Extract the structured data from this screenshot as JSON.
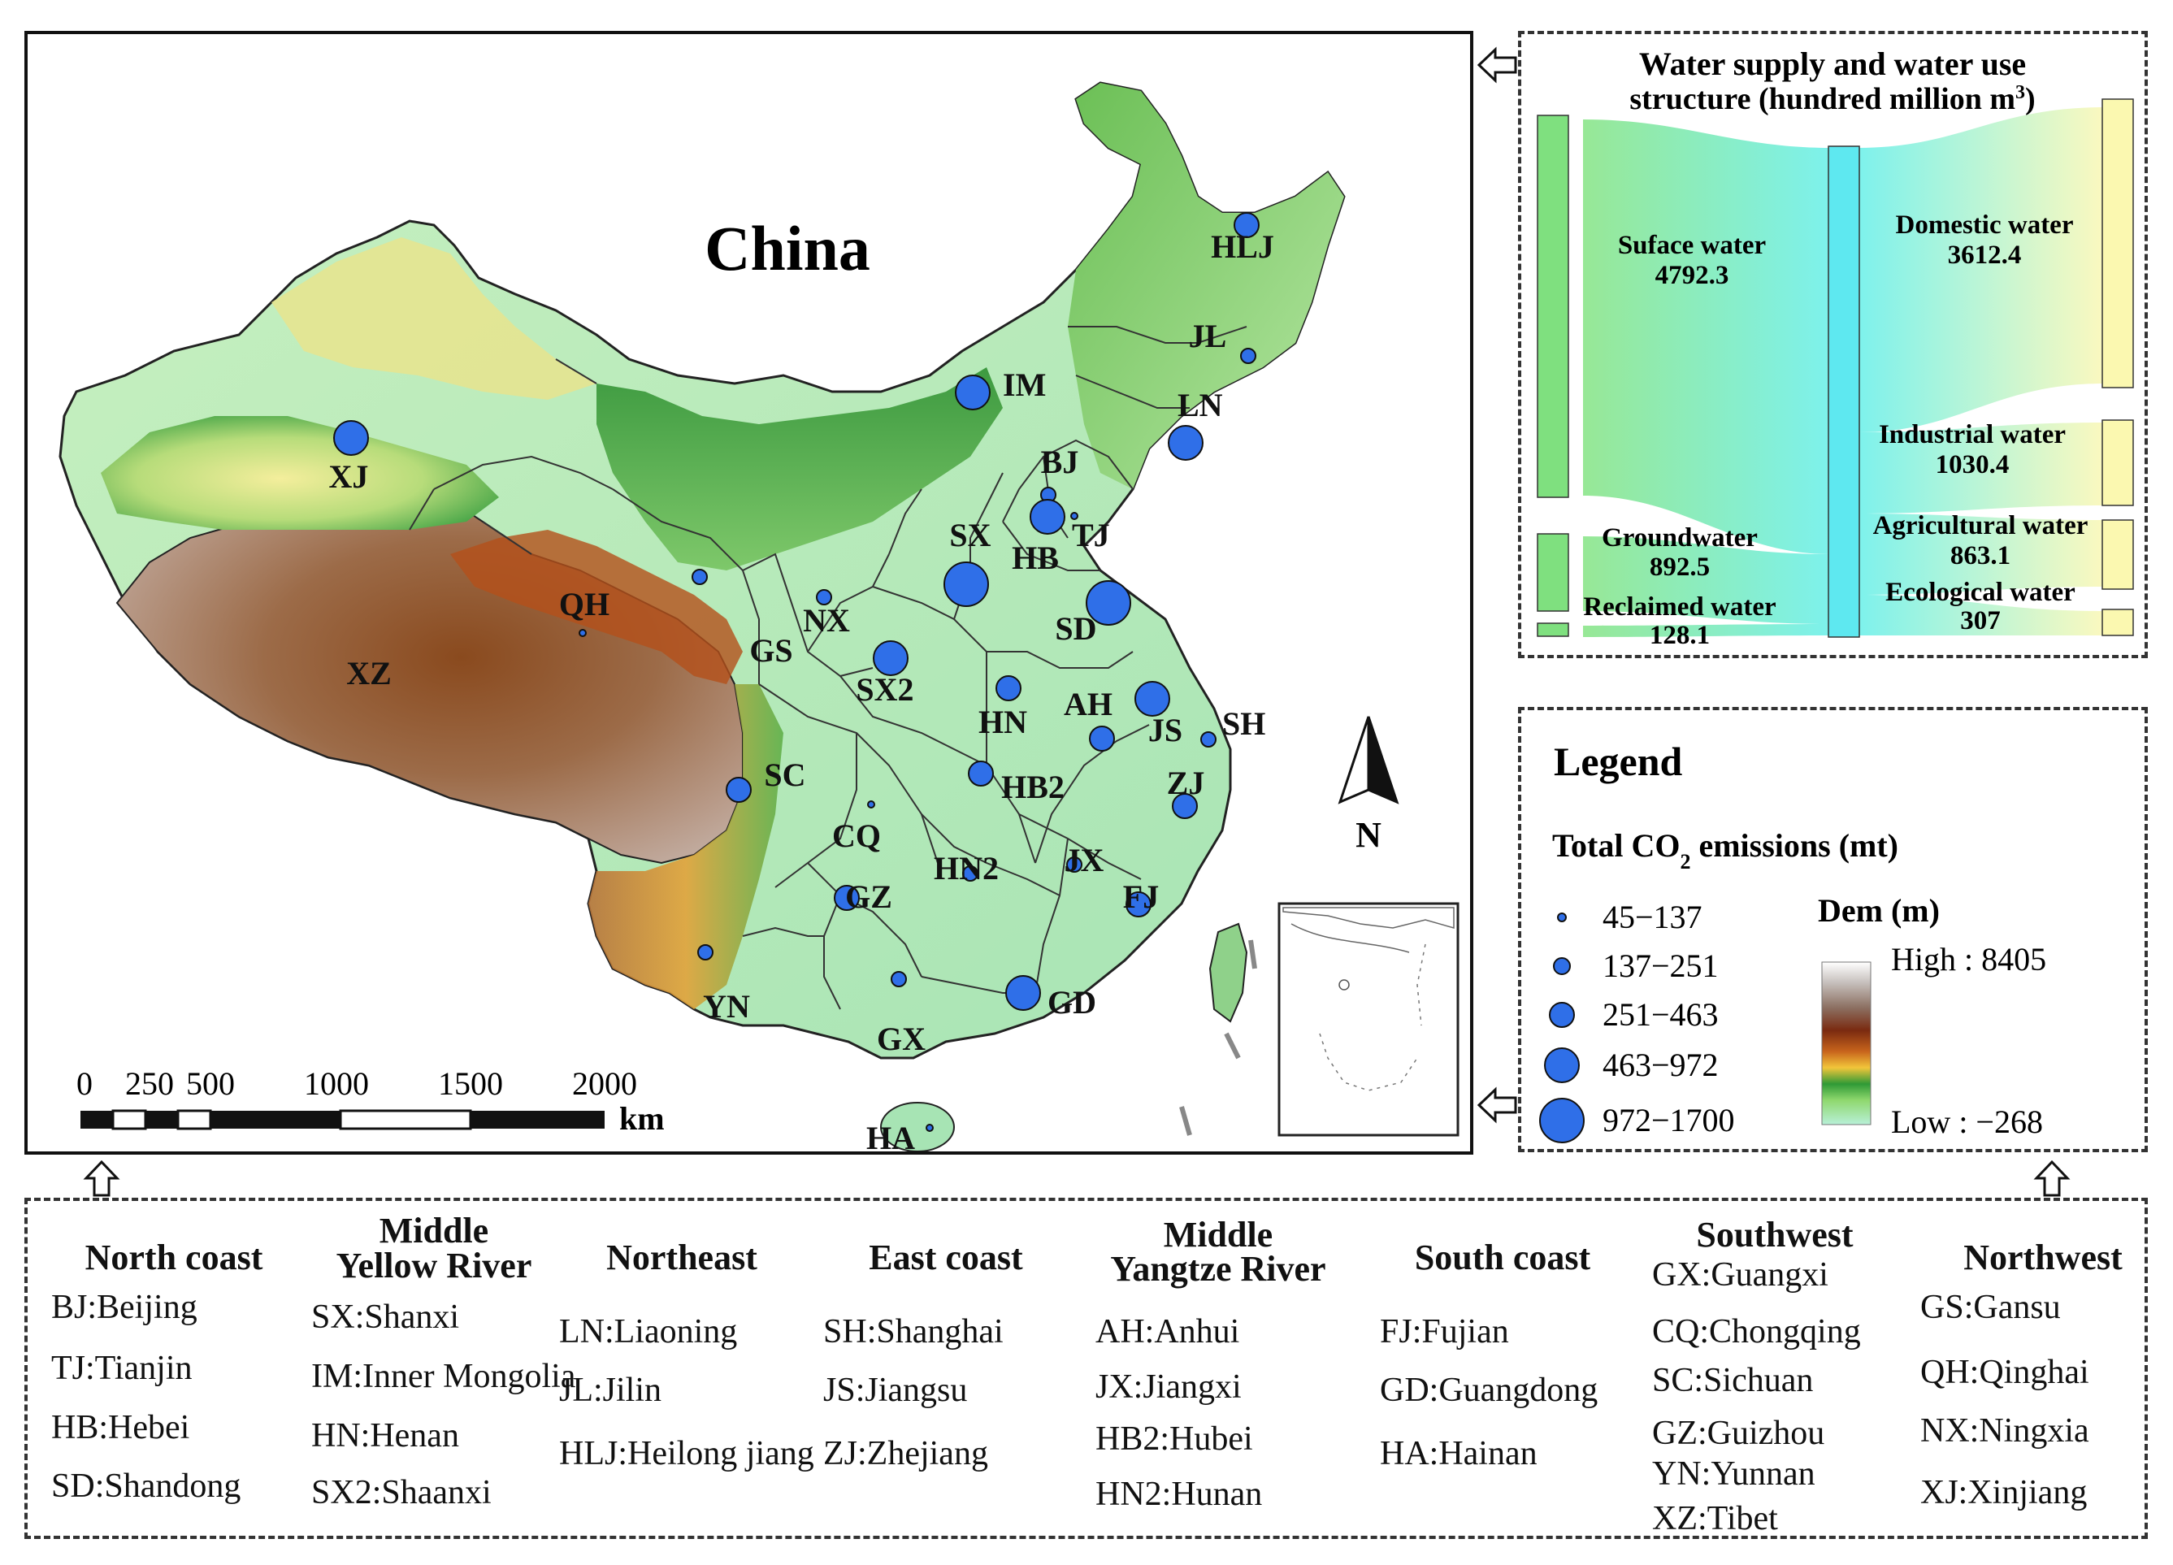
{
  "map": {
    "title": "China",
    "provinces": [
      {
        "code": "XJ",
        "emission_class": 4
      },
      {
        "code": "QH",
        "emission_class": 1
      },
      {
        "code": "XZ",
        "emission_class": 0
      },
      {
        "code": "GS",
        "emission_class": 2
      },
      {
        "code": "NX",
        "emission_class": 2
      },
      {
        "code": "IM",
        "emission_class": 4
      },
      {
        "code": "HLJ",
        "emission_class": 3
      },
      {
        "code": "JL",
        "emission_class": 2
      },
      {
        "code": "LN",
        "emission_class": 4
      },
      {
        "code": "BJ",
        "emission_class": 2
      },
      {
        "code": "TJ",
        "emission_class": 1
      },
      {
        "code": "HB",
        "emission_class": 4
      },
      {
        "code": "SX",
        "emission_class": 5
      },
      {
        "code": "SD",
        "emission_class": 5
      },
      {
        "code": "SX2",
        "emission_class": 4
      },
      {
        "code": "HN",
        "emission_class": 3
      },
      {
        "code": "AH",
        "emission_class": 3
      },
      {
        "code": "JS",
        "emission_class": 4
      },
      {
        "code": "SH",
        "emission_class": 2
      },
      {
        "code": "ZJ",
        "emission_class": 3
      },
      {
        "code": "HB2",
        "emission_class": 3
      },
      {
        "code": "SC",
        "emission_class": 3
      },
      {
        "code": "CQ",
        "emission_class": 1
      },
      {
        "code": "HN2",
        "emission_class": 2
      },
      {
        "code": "JX",
        "emission_class": 2
      },
      {
        "code": "GZ",
        "emission_class": 3
      },
      {
        "code": "FJ",
        "emission_class": 3
      },
      {
        "code": "YN",
        "emission_class": 2
      },
      {
        "code": "GX",
        "emission_class": 2
      },
      {
        "code": "GD",
        "emission_class": 4
      },
      {
        "code": "HA",
        "emission_class": 1
      }
    ],
    "scale_labels": [
      "0",
      "250",
      "500",
      "1000",
      "1500",
      "2000"
    ],
    "scale_unit": "km",
    "north_label": "N"
  },
  "sankey": {
    "title_line1": "Water supply and water use",
    "title_line2": "structure (hundred million m",
    "title_sup": "3",
    "title_close": ")",
    "sources": [
      {
        "name": "Suface water",
        "value": "4792.3"
      },
      {
        "name": "Groundwater",
        "value": "892.5"
      },
      {
        "name": "Reclaimed water",
        "value": "128.1"
      }
    ],
    "uses": [
      {
        "name": "Domestic water",
        "value": "3612.4"
      },
      {
        "name": "Industrial water",
        "value": "1030.4"
      },
      {
        "name": "Agricultural water",
        "value": "863.1"
      },
      {
        "name": "Ecological water",
        "value": "307"
      }
    ],
    "colors": {
      "source": "#7fe07f",
      "hub": "#5ee8f0",
      "use": "#fbf8b0"
    }
  },
  "legend": {
    "title": "Legend",
    "co2_title_pre": "Total CO",
    "co2_title_sub": "2",
    "co2_title_post": " emissions (mt)",
    "classes": [
      "45−137",
      "137−251",
      "251−463",
      "463−972",
      "972−1700"
    ],
    "dem_title": "Dem (m)",
    "dem_high": "High : 8405",
    "dem_low": "Low : −268",
    "circle_color": "#2f6fe8"
  },
  "regions": [
    {
      "title": [
        "North coast"
      ],
      "items": [
        "BJ:Beijing",
        "TJ:Tianjin",
        "HB:Hebei",
        "SD:Shandong"
      ]
    },
    {
      "title": [
        "Middle",
        "Yellow River"
      ],
      "items": [
        "SX:Shanxi",
        "IM:Inner Mongolia",
        "HN:Henan",
        "SX2:Shaanxi"
      ]
    },
    {
      "title": [
        "Northeast"
      ],
      "items": [
        "LN:Liaoning",
        "JL:Jilin",
        "HLJ:Heilong jiang"
      ]
    },
    {
      "title": [
        "East coast"
      ],
      "items": [
        "SH:Shanghai",
        "JS:Jiangsu",
        "ZJ:Zhejiang"
      ]
    },
    {
      "title": [
        "Middle",
        "Yangtze River"
      ],
      "items": [
        "AH:Anhui",
        "JX:Jiangxi",
        "HB2:Hubei",
        "HN2:Hunan"
      ]
    },
    {
      "title": [
        "South coast"
      ],
      "items": [
        "FJ:Fujian",
        "GD:Guangdong",
        "HA:Hainan"
      ]
    },
    {
      "title": [
        "Southwest"
      ],
      "items": [
        "GX:Guangxi",
        "CQ:Chongqing",
        "SC:Sichuan",
        "GZ:Guizhou",
        "YN:Yunnan",
        "XZ:Tibet"
      ]
    },
    {
      "title": [
        "Northwest"
      ],
      "items": [
        "GS:Gansu",
        "QH:Qinghai",
        "NX:Ningxia",
        "XJ:Xinjiang"
      ]
    }
  ]
}
